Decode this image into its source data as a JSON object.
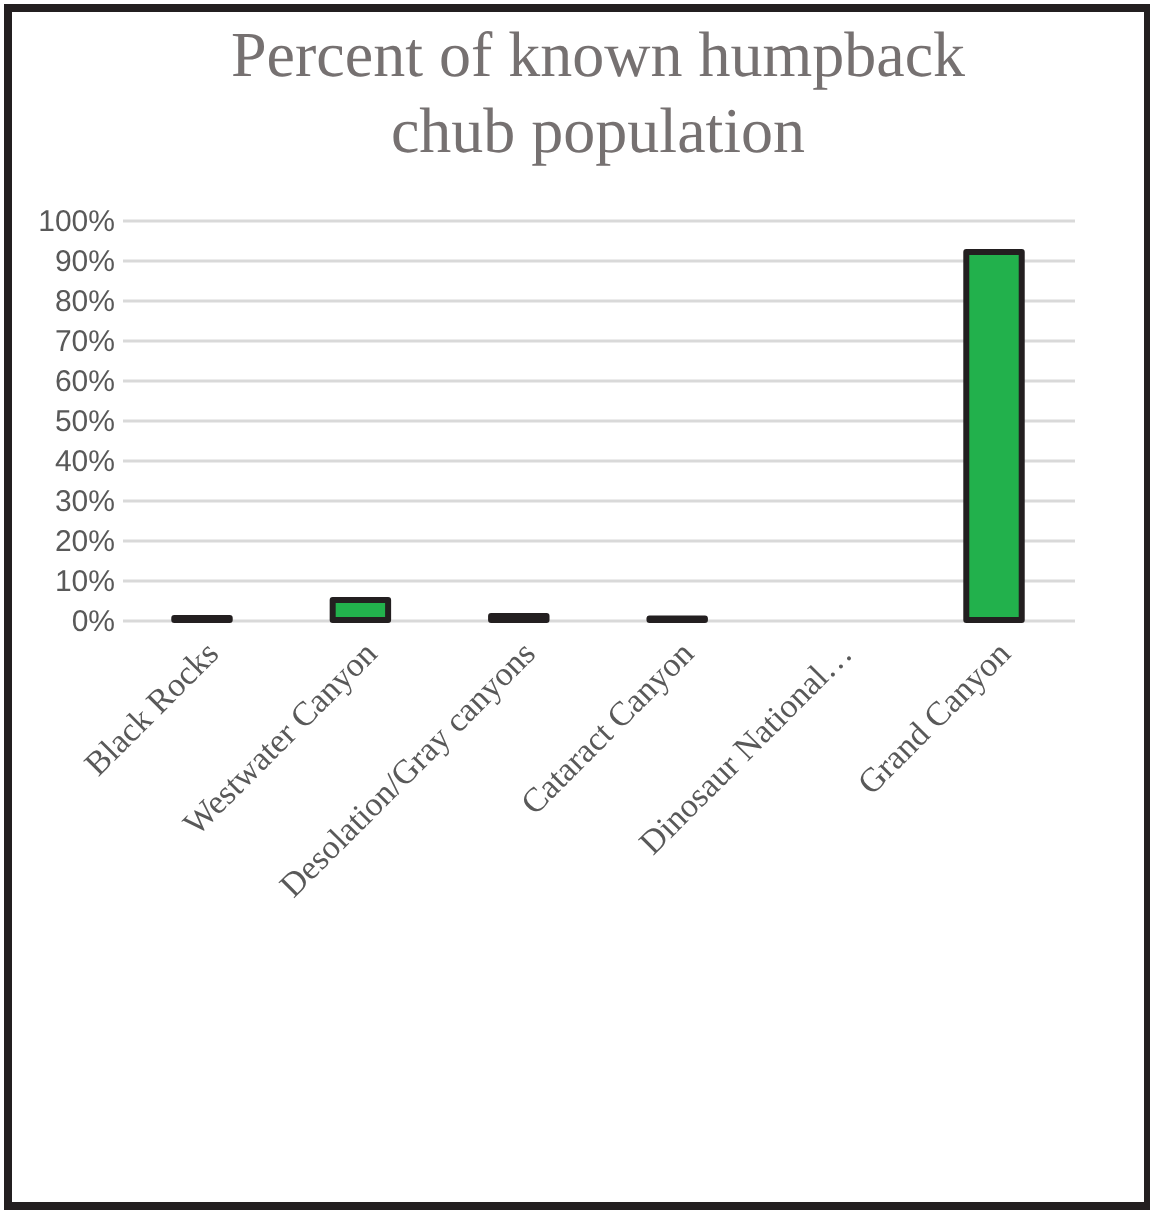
{
  "chart_data": {
    "type": "bar",
    "title": "Percent of known humpback chub population",
    "categories": [
      "Black Rocks",
      "Westwater Canyon",
      "Desolation/Gray canyons",
      "Cataract Canyon",
      "Dinosaur National…",
      "Grand Canyon"
    ],
    "values": [
      0.5,
      5,
      1,
      0.4,
      null,
      92
    ],
    "color": "#22b14c",
    "ylim": [
      0,
      100
    ],
    "yticks": [
      {
        "value": 0,
        "label": "0%"
      },
      {
        "value": 10,
        "label": "10%"
      },
      {
        "value": 20,
        "label": "20%"
      },
      {
        "value": 30,
        "label": "30%"
      },
      {
        "value": 40,
        "label": "40%"
      },
      {
        "value": 50,
        "label": "50%"
      },
      {
        "value": 60,
        "label": "60%"
      },
      {
        "value": 70,
        "label": "70%"
      },
      {
        "value": 80,
        "label": "80%"
      },
      {
        "value": 90,
        "label": "90%"
      },
      {
        "value": 100,
        "label": "100%"
      }
    ],
    "grid": "y"
  }
}
